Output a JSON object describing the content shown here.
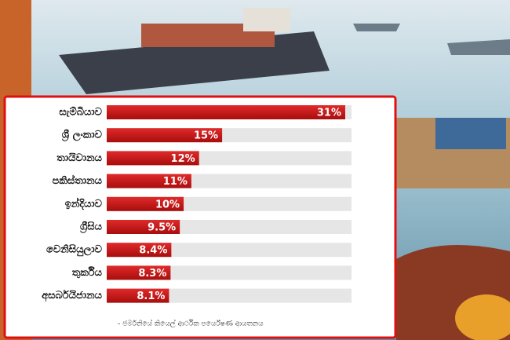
{
  "chart_data": {
    "type": "bar",
    "orientation": "horizontal",
    "categories": [
      "සැම්බියාව",
      "ශ්‍රී ලංකාව",
      "තායිවානය",
      "පකිස්තානය",
      "ඉන්දියාව",
      "ග්‍රීසිය",
      "වෙනිසියුලාව",
      "තුර්කිය",
      "අසර්බයිජානය"
    ],
    "values": [
      31,
      15,
      12,
      11,
      10,
      9.5,
      8.4,
      8.3,
      8.1
    ],
    "value_labels": [
      "31%",
      "15%",
      "12%",
      "11%",
      "10%",
      "9.5%",
      "8.4%",
      "8.3%",
      "8.1%"
    ],
    "color": "#d01818",
    "source": "- ජර්මනියේ කියෙල් ආර්ථික පර්යේෂණ ආයතනය"
  }
}
